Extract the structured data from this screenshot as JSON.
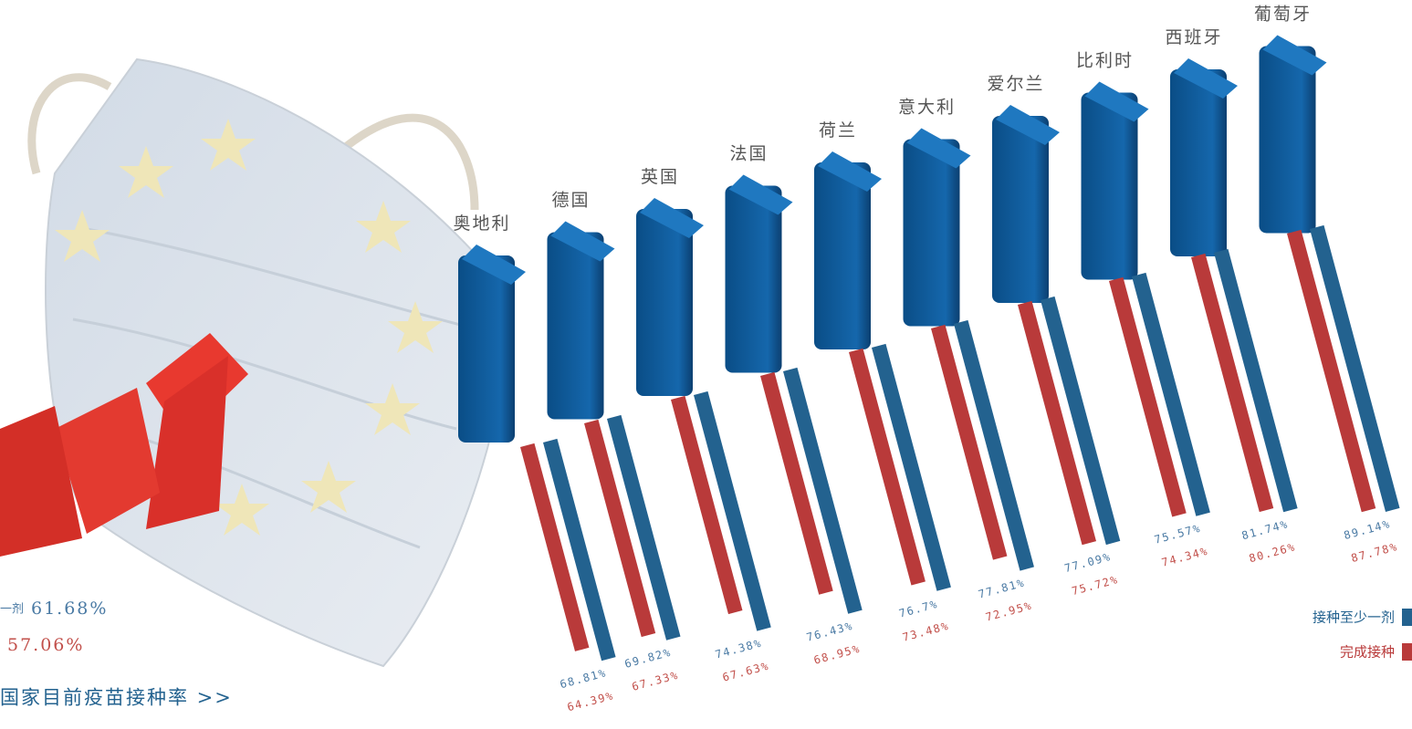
{
  "chart_data": {
    "type": "bar",
    "categories": [
      "奥地利",
      "德国",
      "英国",
      "法国",
      "荷兰",
      "意大利",
      "爱尔兰",
      "比利时",
      "西班牙",
      "葡萄牙"
    ],
    "series": [
      {
        "name": "接种至少一剂",
        "color": "#23628f",
        "values": [
          68.81,
          69.82,
          74.38,
          76.43,
          76.7,
          77.81,
          77.09,
          75.57,
          81.74,
          89.14
        ],
        "value_labels": [
          "68.81%",
          "69.82%",
          "74.38%",
          "76.43%",
          "76.7%",
          "77.81%",
          "77.09%",
          "75.57%",
          "81.74%",
          "89.14%"
        ]
      },
      {
        "name": "完成接种",
        "color": "#b93a3a",
        "values": [
          64.39,
          67.33,
          67.63,
          68.95,
          73.48,
          72.95,
          75.72,
          74.34,
          80.26,
          87.78
        ],
        "value_labels": [
          "64.39%",
          "67.33%",
          "67.63%",
          "68.95%",
          "73.48%",
          "72.95%",
          "75.72%",
          "74.34%",
          "80.26%",
          "87.78%"
        ]
      }
    ],
    "legend": "bottom-right",
    "side_stats": [
      {
        "label": "一剂",
        "value": "61.68%"
      },
      {
        "value": "57.06%"
      }
    ],
    "link": "国家目前疫苗接种率 >>"
  }
}
